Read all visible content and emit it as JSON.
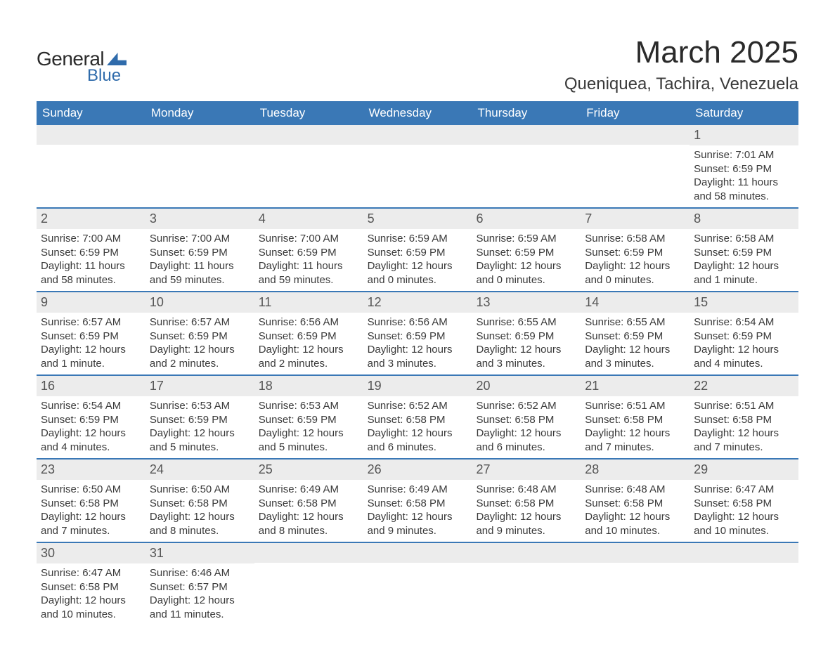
{
  "logo": {
    "text1": "General",
    "text2": "Blue"
  },
  "title": "March 2025",
  "location": "Queniquea, Tachira, Venezuela",
  "colors": {
    "header_bg": "#3a78b6",
    "daynum_bg": "#ececec",
    "row_border": "#3a78b6",
    "text": "#3a3a3a",
    "logo_accent": "#2f6bab"
  },
  "fonts": {
    "title_size_pt": 33,
    "location_size_pt": 18,
    "weekday_size_pt": 13,
    "daynum_size_pt": 14,
    "body_size_pt": 11
  },
  "weekdays": [
    "Sunday",
    "Monday",
    "Tuesday",
    "Wednesday",
    "Thursday",
    "Friday",
    "Saturday"
  ],
  "weeks": [
    [
      {
        "n": "",
        "sr": "",
        "ss": "",
        "dl": ""
      },
      {
        "n": "",
        "sr": "",
        "ss": "",
        "dl": ""
      },
      {
        "n": "",
        "sr": "",
        "ss": "",
        "dl": ""
      },
      {
        "n": "",
        "sr": "",
        "ss": "",
        "dl": ""
      },
      {
        "n": "",
        "sr": "",
        "ss": "",
        "dl": ""
      },
      {
        "n": "",
        "sr": "",
        "ss": "",
        "dl": ""
      },
      {
        "n": "1",
        "sr": "Sunrise: 7:01 AM",
        "ss": "Sunset: 6:59 PM",
        "dl": "Daylight: 11 hours and 58 minutes."
      }
    ],
    [
      {
        "n": "2",
        "sr": "Sunrise: 7:00 AM",
        "ss": "Sunset: 6:59 PM",
        "dl": "Daylight: 11 hours and 58 minutes."
      },
      {
        "n": "3",
        "sr": "Sunrise: 7:00 AM",
        "ss": "Sunset: 6:59 PM",
        "dl": "Daylight: 11 hours and 59 minutes."
      },
      {
        "n": "4",
        "sr": "Sunrise: 7:00 AM",
        "ss": "Sunset: 6:59 PM",
        "dl": "Daylight: 11 hours and 59 minutes."
      },
      {
        "n": "5",
        "sr": "Sunrise: 6:59 AM",
        "ss": "Sunset: 6:59 PM",
        "dl": "Daylight: 12 hours and 0 minutes."
      },
      {
        "n": "6",
        "sr": "Sunrise: 6:59 AM",
        "ss": "Sunset: 6:59 PM",
        "dl": "Daylight: 12 hours and 0 minutes."
      },
      {
        "n": "7",
        "sr": "Sunrise: 6:58 AM",
        "ss": "Sunset: 6:59 PM",
        "dl": "Daylight: 12 hours and 0 minutes."
      },
      {
        "n": "8",
        "sr": "Sunrise: 6:58 AM",
        "ss": "Sunset: 6:59 PM",
        "dl": "Daylight: 12 hours and 1 minute."
      }
    ],
    [
      {
        "n": "9",
        "sr": "Sunrise: 6:57 AM",
        "ss": "Sunset: 6:59 PM",
        "dl": "Daylight: 12 hours and 1 minute."
      },
      {
        "n": "10",
        "sr": "Sunrise: 6:57 AM",
        "ss": "Sunset: 6:59 PM",
        "dl": "Daylight: 12 hours and 2 minutes."
      },
      {
        "n": "11",
        "sr": "Sunrise: 6:56 AM",
        "ss": "Sunset: 6:59 PM",
        "dl": "Daylight: 12 hours and 2 minutes."
      },
      {
        "n": "12",
        "sr": "Sunrise: 6:56 AM",
        "ss": "Sunset: 6:59 PM",
        "dl": "Daylight: 12 hours and 3 minutes."
      },
      {
        "n": "13",
        "sr": "Sunrise: 6:55 AM",
        "ss": "Sunset: 6:59 PM",
        "dl": "Daylight: 12 hours and 3 minutes."
      },
      {
        "n": "14",
        "sr": "Sunrise: 6:55 AM",
        "ss": "Sunset: 6:59 PM",
        "dl": "Daylight: 12 hours and 3 minutes."
      },
      {
        "n": "15",
        "sr": "Sunrise: 6:54 AM",
        "ss": "Sunset: 6:59 PM",
        "dl": "Daylight: 12 hours and 4 minutes."
      }
    ],
    [
      {
        "n": "16",
        "sr": "Sunrise: 6:54 AM",
        "ss": "Sunset: 6:59 PM",
        "dl": "Daylight: 12 hours and 4 minutes."
      },
      {
        "n": "17",
        "sr": "Sunrise: 6:53 AM",
        "ss": "Sunset: 6:59 PM",
        "dl": "Daylight: 12 hours and 5 minutes."
      },
      {
        "n": "18",
        "sr": "Sunrise: 6:53 AM",
        "ss": "Sunset: 6:59 PM",
        "dl": "Daylight: 12 hours and 5 minutes."
      },
      {
        "n": "19",
        "sr": "Sunrise: 6:52 AM",
        "ss": "Sunset: 6:58 PM",
        "dl": "Daylight: 12 hours and 6 minutes."
      },
      {
        "n": "20",
        "sr": "Sunrise: 6:52 AM",
        "ss": "Sunset: 6:58 PM",
        "dl": "Daylight: 12 hours and 6 minutes."
      },
      {
        "n": "21",
        "sr": "Sunrise: 6:51 AM",
        "ss": "Sunset: 6:58 PM",
        "dl": "Daylight: 12 hours and 7 minutes."
      },
      {
        "n": "22",
        "sr": "Sunrise: 6:51 AM",
        "ss": "Sunset: 6:58 PM",
        "dl": "Daylight: 12 hours and 7 minutes."
      }
    ],
    [
      {
        "n": "23",
        "sr": "Sunrise: 6:50 AM",
        "ss": "Sunset: 6:58 PM",
        "dl": "Daylight: 12 hours and 7 minutes."
      },
      {
        "n": "24",
        "sr": "Sunrise: 6:50 AM",
        "ss": "Sunset: 6:58 PM",
        "dl": "Daylight: 12 hours and 8 minutes."
      },
      {
        "n": "25",
        "sr": "Sunrise: 6:49 AM",
        "ss": "Sunset: 6:58 PM",
        "dl": "Daylight: 12 hours and 8 minutes."
      },
      {
        "n": "26",
        "sr": "Sunrise: 6:49 AM",
        "ss": "Sunset: 6:58 PM",
        "dl": "Daylight: 12 hours and 9 minutes."
      },
      {
        "n": "27",
        "sr": "Sunrise: 6:48 AM",
        "ss": "Sunset: 6:58 PM",
        "dl": "Daylight: 12 hours and 9 minutes."
      },
      {
        "n": "28",
        "sr": "Sunrise: 6:48 AM",
        "ss": "Sunset: 6:58 PM",
        "dl": "Daylight: 12 hours and 10 minutes."
      },
      {
        "n": "29",
        "sr": "Sunrise: 6:47 AM",
        "ss": "Sunset: 6:58 PM",
        "dl": "Daylight: 12 hours and 10 minutes."
      }
    ],
    [
      {
        "n": "30",
        "sr": "Sunrise: 6:47 AM",
        "ss": "Sunset: 6:58 PM",
        "dl": "Daylight: 12 hours and 10 minutes."
      },
      {
        "n": "31",
        "sr": "Sunrise: 6:46 AM",
        "ss": "Sunset: 6:57 PM",
        "dl": "Daylight: 12 hours and 11 minutes."
      },
      {
        "n": "",
        "sr": "",
        "ss": "",
        "dl": ""
      },
      {
        "n": "",
        "sr": "",
        "ss": "",
        "dl": ""
      },
      {
        "n": "",
        "sr": "",
        "ss": "",
        "dl": ""
      },
      {
        "n": "",
        "sr": "",
        "ss": "",
        "dl": ""
      },
      {
        "n": "",
        "sr": "",
        "ss": "",
        "dl": ""
      }
    ]
  ]
}
